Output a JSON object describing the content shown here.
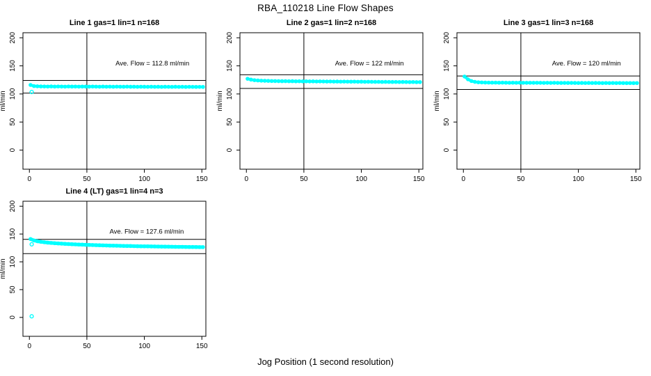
{
  "page": {
    "title": "RBA_110218  Line Flow Shapes",
    "xlabel": "Jog Position (1 second resolution)"
  },
  "colors": {
    "points": "#00FFFF",
    "axis": "#000000",
    "background": "#FFFFFF"
  },
  "axes": {
    "ylabel": "ml/min",
    "x_ticks": [
      0,
      50,
      100,
      150
    ],
    "y_ticks": [
      0,
      50,
      100,
      150,
      200
    ]
  },
  "chart_data": [
    {
      "type": "scatter",
      "title": "Line 1 gas=1 lin=1 n=168",
      "annotation": "Ave. Flow =  112.8  ml/min",
      "ave_flow": 112.8,
      "units": "ml/min",
      "xlim": [
        -5.6,
        153.5
      ],
      "ylim": [
        -34,
        209
      ],
      "vline_x": 50,
      "ref_lines": [
        124.1,
        101.5
      ],
      "annotation_pos": [
        107,
        151
      ],
      "points": [
        [
          1,
          116
        ],
        [
          4,
          114
        ],
        [
          7,
          113.6
        ],
        [
          10,
          113.4
        ],
        [
          13,
          113.3
        ],
        [
          16,
          113.2
        ],
        [
          19,
          113.4
        ],
        [
          22,
          113.1
        ],
        [
          25,
          113.3
        ],
        [
          28,
          113.2
        ],
        [
          31,
          113
        ],
        [
          34,
          113.3
        ],
        [
          37,
          113.1
        ],
        [
          40,
          113.2
        ],
        [
          43,
          113
        ],
        [
          46,
          113.2
        ],
        [
          49,
          113.1
        ],
        [
          52,
          113
        ],
        [
          55,
          113.2
        ],
        [
          58,
          113
        ],
        [
          61,
          112.9
        ],
        [
          64,
          113.1
        ],
        [
          67,
          112.9
        ],
        [
          70,
          113
        ],
        [
          73,
          112.8
        ],
        [
          76,
          113
        ],
        [
          79,
          112.9
        ],
        [
          82,
          112.8
        ],
        [
          85,
          113
        ],
        [
          88,
          112.8
        ],
        [
          91,
          112.9
        ],
        [
          94,
          112.7
        ],
        [
          97,
          112.9
        ],
        [
          100,
          112.8
        ],
        [
          103,
          112.7
        ],
        [
          106,
          112.9
        ],
        [
          109,
          112.7
        ],
        [
          112,
          112.8
        ],
        [
          115,
          112.6
        ],
        [
          118,
          112.8
        ],
        [
          121,
          112.7
        ],
        [
          124,
          112.6
        ],
        [
          127,
          112.8
        ],
        [
          130,
          112.6
        ],
        [
          133,
          112.7
        ],
        [
          136,
          112.5
        ],
        [
          139,
          112.7
        ],
        [
          142,
          112.6
        ],
        [
          145,
          112.5
        ],
        [
          148,
          112.6
        ],
        [
          151,
          112.5
        ]
      ],
      "outliers": [
        [
          2,
          103.5
        ]
      ]
    },
    {
      "type": "scatter",
      "title": "Line 2 gas=1 lin=2 n=168",
      "annotation": "Ave. Flow =  122  ml/min",
      "ave_flow": 122,
      "units": "ml/min",
      "xlim": [
        -5.6,
        153.5
      ],
      "ylim": [
        -34,
        209
      ],
      "vline_x": 50,
      "ref_lines": [
        134.2,
        109.8
      ],
      "annotation_pos": [
        107,
        151
      ],
      "points": [
        [
          1,
          127
        ],
        [
          4,
          125.5
        ],
        [
          7,
          124.5
        ],
        [
          10,
          124
        ],
        [
          13,
          123.6
        ],
        [
          16,
          123.4
        ],
        [
          19,
          123.2
        ],
        [
          22,
          123
        ],
        [
          25,
          122.9
        ],
        [
          28,
          122.8
        ],
        [
          31,
          122.7
        ],
        [
          34,
          122.8
        ],
        [
          37,
          122.6
        ],
        [
          40,
          122.7
        ],
        [
          43,
          122.5
        ],
        [
          46,
          122.6
        ],
        [
          49,
          122.4
        ],
        [
          52,
          122.5
        ],
        [
          55,
          122.3
        ],
        [
          58,
          122.4
        ],
        [
          61,
          122.2
        ],
        [
          64,
          122.3
        ],
        [
          67,
          122.2
        ],
        [
          70,
          122.1
        ],
        [
          73,
          122.2
        ],
        [
          76,
          122
        ],
        [
          79,
          122.1
        ],
        [
          82,
          121.9
        ],
        [
          85,
          122
        ],
        [
          88,
          121.9
        ],
        [
          91,
          121.8
        ],
        [
          94,
          121.9
        ],
        [
          97,
          121.7
        ],
        [
          100,
          121.8
        ],
        [
          103,
          121.6
        ],
        [
          106,
          121.7
        ],
        [
          109,
          121.6
        ],
        [
          112,
          121.5
        ],
        [
          115,
          121.6
        ],
        [
          118,
          121.4
        ],
        [
          121,
          121.5
        ],
        [
          124,
          121.4
        ],
        [
          127,
          121.3
        ],
        [
          130,
          121.4
        ],
        [
          133,
          121.2
        ],
        [
          136,
          121.3
        ],
        [
          139,
          121.2
        ],
        [
          142,
          121.1
        ],
        [
          145,
          121.2
        ],
        [
          148,
          121
        ],
        [
          151,
          121.1
        ]
      ],
      "outliers": []
    },
    {
      "type": "scatter",
      "title": "Line 3 gas=1 lin=3 n=168",
      "annotation": "Ave. Flow =  120  ml/min",
      "ave_flow": 120,
      "units": "ml/min",
      "xlim": [
        -5.6,
        153.5
      ],
      "ylim": [
        -34,
        209
      ],
      "vline_x": 50,
      "ref_lines": [
        132,
        108
      ],
      "annotation_pos": [
        107,
        151
      ],
      "points": [
        [
          1,
          131
        ],
        [
          4,
          126
        ],
        [
          7,
          123
        ],
        [
          10,
          121.5
        ],
        [
          13,
          120.8
        ],
        [
          16,
          120.5
        ],
        [
          19,
          120.3
        ],
        [
          22,
          120.2
        ],
        [
          25,
          120.1
        ],
        [
          28,
          120.2
        ],
        [
          31,
          120
        ],
        [
          34,
          120.1
        ],
        [
          37,
          120
        ],
        [
          40,
          119.9
        ],
        [
          43,
          120
        ],
        [
          46,
          119.9
        ],
        [
          49,
          120
        ],
        [
          52,
          119.9
        ],
        [
          55,
          119.8
        ],
        [
          58,
          119.9
        ],
        [
          61,
          119.8
        ],
        [
          64,
          119.9
        ],
        [
          67,
          119.8
        ],
        [
          70,
          119.7
        ],
        [
          73,
          119.8
        ],
        [
          76,
          119.7
        ],
        [
          79,
          119.8
        ],
        [
          82,
          119.7
        ],
        [
          85,
          119.6
        ],
        [
          88,
          119.7
        ],
        [
          91,
          119.6
        ],
        [
          94,
          119.7
        ],
        [
          97,
          119.6
        ],
        [
          100,
          119.5
        ],
        [
          103,
          119.6
        ],
        [
          106,
          119.5
        ],
        [
          109,
          119.6
        ],
        [
          112,
          119.5
        ],
        [
          115,
          119.6
        ],
        [
          118,
          119.5
        ],
        [
          121,
          119.4
        ],
        [
          124,
          119.5
        ],
        [
          127,
          119.4
        ],
        [
          130,
          119.5
        ],
        [
          133,
          119.4
        ],
        [
          136,
          119.5
        ],
        [
          139,
          119.4
        ],
        [
          142,
          119.3
        ],
        [
          145,
          119.4
        ],
        [
          148,
          119.3
        ],
        [
          151,
          119.4
        ]
      ],
      "outliers": []
    },
    {
      "type": "scatter",
      "title": "Line 4 (LT) gas=1 lin=4 n=3",
      "annotation": "Ave. Flow =  127.6  ml/min",
      "ave_flow": 127.6,
      "units": "ml/min",
      "xlim": [
        -5.6,
        153.5
      ],
      "ylim": [
        -34,
        209
      ],
      "vline_x": 50,
      "ref_lines": [
        140.4,
        114.8
      ],
      "annotation_pos": [
        102,
        151
      ],
      "points": [
        [
          1,
          141
        ],
        [
          4,
          138.5
        ],
        [
          7,
          137
        ],
        [
          10,
          136
        ],
        [
          13,
          135.2
        ],
        [
          16,
          134.5
        ],
        [
          19,
          134
        ],
        [
          22,
          133.5
        ],
        [
          25,
          133.1
        ],
        [
          28,
          132.7
        ],
        [
          31,
          132.3
        ],
        [
          34,
          132
        ],
        [
          37,
          131.7
        ],
        [
          40,
          131.4
        ],
        [
          43,
          131.1
        ],
        [
          46,
          130.9
        ],
        [
          49,
          130.6
        ],
        [
          52,
          130.4
        ],
        [
          55,
          130.2
        ],
        [
          58,
          130
        ],
        [
          61,
          129.8
        ],
        [
          64,
          129.6
        ],
        [
          67,
          129.4
        ],
        [
          70,
          129.2
        ],
        [
          73,
          129.1
        ],
        [
          76,
          128.9
        ],
        [
          79,
          128.8
        ],
        [
          82,
          128.6
        ],
        [
          85,
          128.5
        ],
        [
          88,
          128.4
        ],
        [
          91,
          128.2
        ],
        [
          94,
          128.1
        ],
        [
          97,
          128
        ],
        [
          100,
          127.9
        ],
        [
          103,
          127.8
        ],
        [
          106,
          127.7
        ],
        [
          109,
          127.6
        ],
        [
          112,
          127.5
        ],
        [
          115,
          127.4
        ],
        [
          118,
          127.3
        ],
        [
          121,
          127.2
        ],
        [
          124,
          127.1
        ],
        [
          127,
          127
        ],
        [
          130,
          126.9
        ],
        [
          133,
          126.9
        ],
        [
          136,
          126.8
        ],
        [
          139,
          126.7
        ],
        [
          142,
          126.7
        ],
        [
          145,
          126.6
        ],
        [
          148,
          126.5
        ],
        [
          151,
          126.5
        ]
      ],
      "outliers": [
        [
          2,
          131.5
        ],
        [
          2,
          2
        ]
      ]
    }
  ]
}
